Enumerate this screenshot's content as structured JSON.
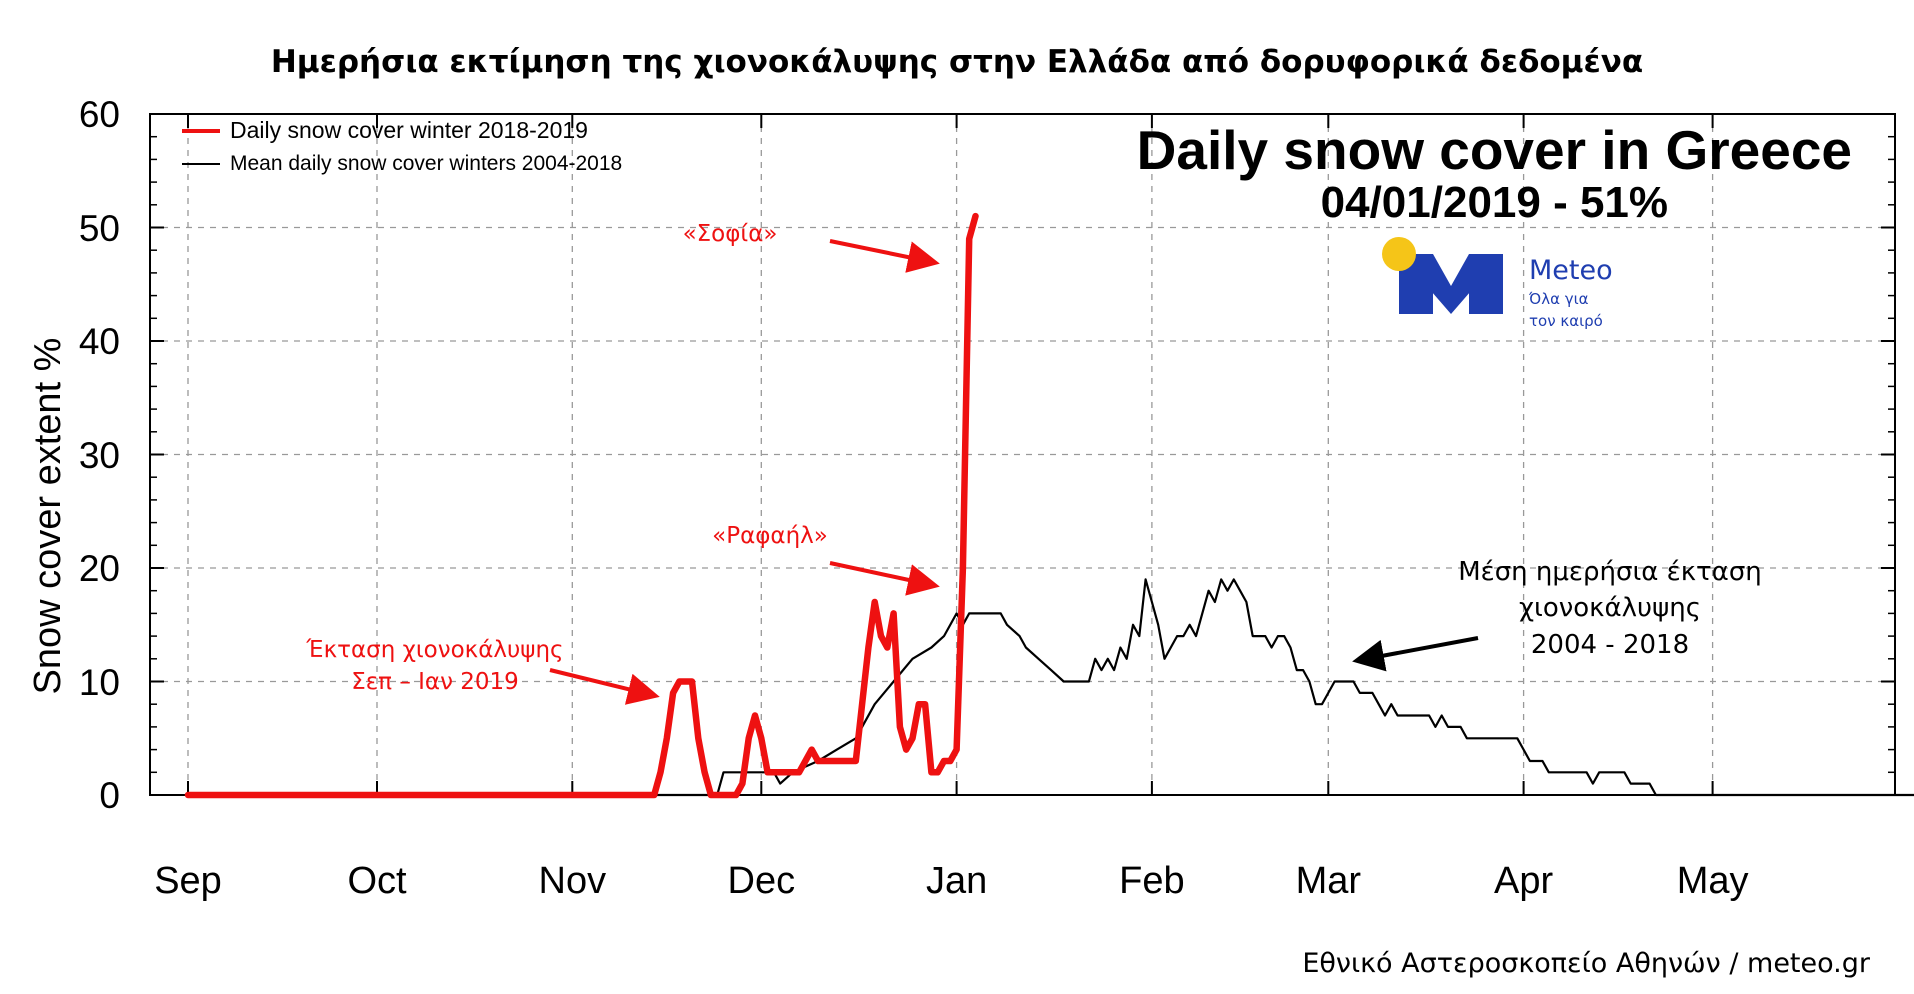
{
  "page_title": "Ημερήσια εκτίμηση της χιονοκάλυψης στην Ελλάδα από δορυφορικά δεδομένα",
  "credit": "Εθνικό Αστεροσκοπείο Αθηνών / meteo.gr",
  "logo": {
    "brand": "Meteo",
    "tagline_1": "Όλα για",
    "tagline_2": "τον καιρό",
    "icon": "meteo-logo-icon",
    "sun_color": "#f5c518",
    "mark_color": "#1f3eb0"
  },
  "annotations": {
    "sofia": "«Σοφία»",
    "rafail": "«Ραφαήλ»",
    "extent_line1": "Έκταση χιονοκάλυψης",
    "extent_line2": "Σεπ – Ιαν 2019",
    "mean_line1": "Μέση ημερήσια έκταση",
    "mean_line2": "χιονοκάλυψης",
    "mean_line3": "2004 - 2018"
  },
  "chart_data": {
    "type": "line",
    "title": "Daily snow cover in Greece",
    "subtitle": "04/01/2019 - 51%",
    "ylabel": "Snow cover extent %",
    "xlabel": "",
    "ylim": [
      0,
      60
    ],
    "yticks": [
      0,
      10,
      20,
      30,
      40,
      50,
      60
    ],
    "xtick_labels": [
      "Sep",
      "Oct",
      "Nov",
      "Dec",
      "Jan",
      "Feb",
      "Mar",
      "Apr",
      "May"
    ],
    "xlim": [
      "Sep 1",
      "end of Jun"
    ],
    "grid": true,
    "legend_position": "top-left",
    "series": [
      {
        "name": "Daily snow cover winter 2018-2019",
        "color": "#ee1111",
        "points": [
          [
            "Sep 1",
            0
          ],
          [
            "Nov 14",
            0
          ],
          [
            "Nov 15",
            2
          ],
          [
            "Nov 16",
            5
          ],
          [
            "Nov 17",
            9
          ],
          [
            "Nov 18",
            10
          ],
          [
            "Nov 19",
            10
          ],
          [
            "Nov 20",
            10
          ],
          [
            "Nov 21",
            5
          ],
          [
            "Nov 22",
            2
          ],
          [
            "Nov 23",
            0
          ],
          [
            "Nov 27",
            0
          ],
          [
            "Nov 28",
            1
          ],
          [
            "Nov 29",
            5
          ],
          [
            "Nov 30",
            7
          ],
          [
            "Dec 1",
            5
          ],
          [
            "Dec 2",
            2
          ],
          [
            "Dec 7",
            2
          ],
          [
            "Dec 8",
            3
          ],
          [
            "Dec 9",
            4
          ],
          [
            "Dec 10",
            3
          ],
          [
            "Dec 16",
            3
          ],
          [
            "Dec 17",
            8
          ],
          [
            "Dec 18",
            13
          ],
          [
            "Dec 19",
            17
          ],
          [
            "Dec 20",
            14
          ],
          [
            "Dec 21",
            13
          ],
          [
            "Dec 22",
            16
          ],
          [
            "Dec 23",
            6
          ],
          [
            "Dec 24",
            4
          ],
          [
            "Dec 25",
            5
          ],
          [
            "Dec 26",
            8
          ],
          [
            "Dec 27",
            8
          ],
          [
            "Dec 28",
            2
          ],
          [
            "Dec 29",
            2
          ],
          [
            "Dec 30",
            3
          ],
          [
            "Dec 31",
            3
          ],
          [
            "Jan 1",
            4
          ],
          [
            "Jan 2",
            20
          ],
          [
            "Jan 3",
            49
          ],
          [
            "Jan 4",
            51
          ]
        ]
      },
      {
        "name": "Mean daily snow cover winters 2004-2018",
        "color": "#000000",
        "points": [
          [
            "Sep 1",
            0
          ],
          [
            "Nov 24",
            0
          ],
          [
            "Nov 25",
            2
          ],
          [
            "Dec 3",
            2
          ],
          [
            "Dec 4",
            1
          ],
          [
            "Dec 6",
            2
          ],
          [
            "Dec 10",
            3
          ],
          [
            "Dec 13",
            4
          ],
          [
            "Dec 16",
            5
          ],
          [
            "Dec 19",
            8
          ],
          [
            "Dec 22",
            10
          ],
          [
            "Dec 25",
            12
          ],
          [
            "Dec 28",
            13
          ],
          [
            "Dec 30",
            14
          ],
          [
            "Jan 1",
            16
          ],
          [
            "Jan 2",
            15
          ],
          [
            "Jan 3",
            16
          ],
          [
            "Jan 8",
            16
          ],
          [
            "Jan 9",
            15
          ],
          [
            "Jan 11",
            14
          ],
          [
            "Jan 12",
            13
          ],
          [
            "Jan 14",
            12
          ],
          [
            "Jan 16",
            11
          ],
          [
            "Jan 18",
            10
          ],
          [
            "Jan 22",
            10
          ],
          [
            "Jan 23",
            12
          ],
          [
            "Jan 24",
            11
          ],
          [
            "Jan 25",
            12
          ],
          [
            "Jan 26",
            11
          ],
          [
            "Jan 27",
            13
          ],
          [
            "Jan 28",
            12
          ],
          [
            "Jan 29",
            15
          ],
          [
            "Jan 30",
            14
          ],
          [
            "Jan 31",
            19
          ],
          [
            "Feb 1",
            17
          ],
          [
            "Feb 2",
            15
          ],
          [
            "Feb 3",
            12
          ],
          [
            "Feb 4",
            13
          ],
          [
            "Feb 5",
            14
          ],
          [
            "Feb 6",
            14
          ],
          [
            "Feb 7",
            15
          ],
          [
            "Feb 8",
            14
          ],
          [
            "Feb 9",
            16
          ],
          [
            "Feb 10",
            18
          ],
          [
            "Feb 11",
            17
          ],
          [
            "Feb 12",
            19
          ],
          [
            "Feb 13",
            18
          ],
          [
            "Feb 14",
            19
          ],
          [
            "Feb 15",
            18
          ],
          [
            "Feb 16",
            17
          ],
          [
            "Feb 17",
            14
          ],
          [
            "Feb 19",
            14
          ],
          [
            "Feb 20",
            13
          ],
          [
            "Feb 21",
            14
          ],
          [
            "Feb 22",
            14
          ],
          [
            "Feb 23",
            13
          ],
          [
            "Feb 24",
            11
          ],
          [
            "Feb 25",
            11
          ],
          [
            "Feb 26",
            10
          ],
          [
            "Feb 27",
            8
          ],
          [
            "Feb 28",
            8
          ],
          [
            "Mar 1",
            9
          ],
          [
            "Mar 2",
            10
          ],
          [
            "Mar 5",
            10
          ],
          [
            "Mar 6",
            9
          ],
          [
            "Mar 8",
            9
          ],
          [
            "Mar 9",
            8
          ],
          [
            "Mar 10",
            7
          ],
          [
            "Mar 11",
            8
          ],
          [
            "Mar 12",
            7
          ],
          [
            "Mar 15",
            7
          ],
          [
            "Mar 17",
            7
          ],
          [
            "Mar 18",
            6
          ],
          [
            "Mar 19",
            7
          ],
          [
            "Mar 20",
            6
          ],
          [
            "Mar 22",
            6
          ],
          [
            "Mar 23",
            5
          ],
          [
            "Mar 28",
            5
          ],
          [
            "Mar 31",
            5
          ],
          [
            "Apr 1",
            4
          ],
          [
            "Apr 2",
            3
          ],
          [
            "Apr 4",
            3
          ],
          [
            "Apr 5",
            2
          ],
          [
            "Apr 11",
            2
          ],
          [
            "Apr 12",
            1
          ],
          [
            "Apr 13",
            2
          ],
          [
            "Apr 17",
            2
          ],
          [
            "Apr 18",
            1
          ],
          [
            "Apr 21",
            1
          ],
          [
            "Apr 22",
            0
          ],
          [
            "Jun 30",
            0
          ]
        ]
      }
    ]
  }
}
